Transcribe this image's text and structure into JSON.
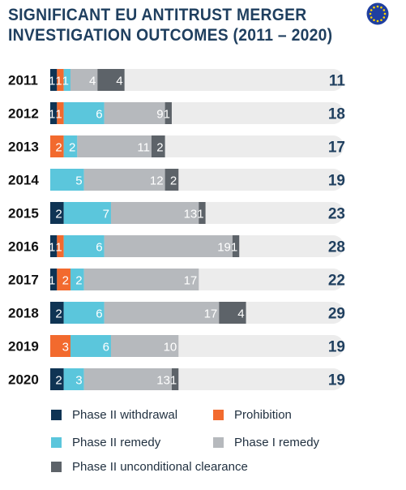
{
  "chart_data": {
    "type": "bar",
    "orientation": "horizontal",
    "stacked": true,
    "title_lines": [
      "SIGNIFICANT EU ANTITRUST MERGER",
      "INVESTIGATION OUTCOMES (2011 – 2020)"
    ],
    "categories": [
      "2011",
      "2012",
      "2013",
      "2014",
      "2015",
      "2016",
      "2017",
      "2018",
      "2019",
      "2020"
    ],
    "series": [
      {
        "name": "Phase II withdrawal",
        "color": "#0f3454",
        "values": [
          1,
          1,
          0,
          0,
          2,
          1,
          1,
          2,
          0,
          2
        ]
      },
      {
        "name": "Prohibition",
        "color": "#f26a2e",
        "values": [
          1,
          1,
          2,
          0,
          0,
          1,
          2,
          0,
          3,
          0
        ]
      },
      {
        "name": "Phase II remedy",
        "color": "#5bc6dc",
        "values": [
          1,
          6,
          2,
          5,
          7,
          6,
          2,
          6,
          6,
          3
        ]
      },
      {
        "name": "Phase I remedy",
        "color": "#b6b9bd",
        "values": [
          4,
          9,
          11,
          12,
          13,
          19,
          17,
          17,
          10,
          13
        ]
      },
      {
        "name": "Phase II unconditional clearance",
        "color": "#5d6369",
        "values": [
          4,
          1,
          2,
          2,
          1,
          1,
          0,
          4,
          0,
          1
        ]
      }
    ],
    "totals": [
      11,
      18,
      17,
      19,
      23,
      28,
      22,
      29,
      19,
      19
    ],
    "xlim": [
      0,
      29
    ],
    "legend_position": "bottom",
    "legend_order": [
      0,
      1,
      2,
      3,
      4
    ],
    "grid": false
  },
  "icons": {
    "flag": "eu-flag-icon"
  },
  "colors": {
    "title": "#1f3f5f",
    "track": "#ececec",
    "total_text": "#1f3f5f"
  }
}
